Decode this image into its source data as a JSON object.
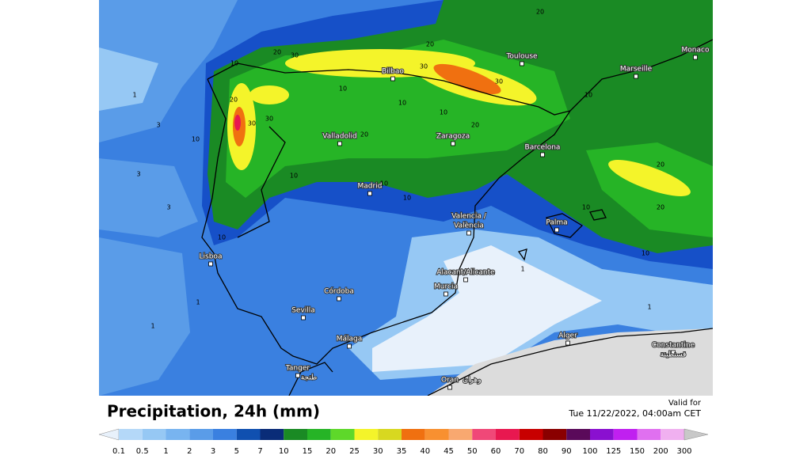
{
  "map": {
    "cities": [
      "Toulouse",
      "Monaco",
      "Marseille",
      "Bilbao",
      "Valladolid",
      "Zaragoza",
      "Barcelona",
      "Madrid",
      "Valencia /",
      "València",
      "Palma",
      "Lisboa",
      "Alacant/Alicante",
      "Murcia",
      "Córdoba",
      "Sevilla",
      "Málaga",
      "Alger",
      "Constantine",
      "قسنطينة",
      "Tanger",
      "طنجة",
      "Oran",
      "وهران"
    ],
    "contour_labels": [
      20,
      30,
      30,
      20,
      30,
      30,
      20,
      10,
      20,
      30,
      10,
      10,
      20,
      10,
      10,
      20,
      10,
      10,
      20,
      20,
      10,
      10,
      10,
      1,
      1,
      3,
      3,
      1,
      1,
      1,
      10,
      10,
      3
    ]
  },
  "legend": {
    "title": "Precipitation, 24h (mm)",
    "valid_label": "Valid for",
    "valid_time": "Tue 11/22/2022, 04:00am CET",
    "ticks": [
      0.1,
      0.5,
      1,
      2,
      3,
      5,
      7,
      10,
      15,
      20,
      25,
      30,
      35,
      40,
      45,
      50,
      60,
      70,
      80,
      90,
      100,
      125,
      150,
      200,
      300
    ],
    "colors": [
      "#e8f1fb",
      "#b4d8f8",
      "#96c8f4",
      "#78b4f0",
      "#5a9ce8",
      "#3a80e0",
      "#1050b0",
      "#0a2c78",
      "#1a8a24",
      "#26b426",
      "#5ed82a",
      "#f4f42a",
      "#d8d820",
      "#f07010",
      "#f89030",
      "#f8a870",
      "#f04878",
      "#e81850",
      "#c80000",
      "#8a0000",
      "#5a0a5a",
      "#8a10d0",
      "#c020f0",
      "#e070f0",
      "#f0b0f0",
      "#f8e8f8",
      "#c8c8c8"
    ]
  }
}
